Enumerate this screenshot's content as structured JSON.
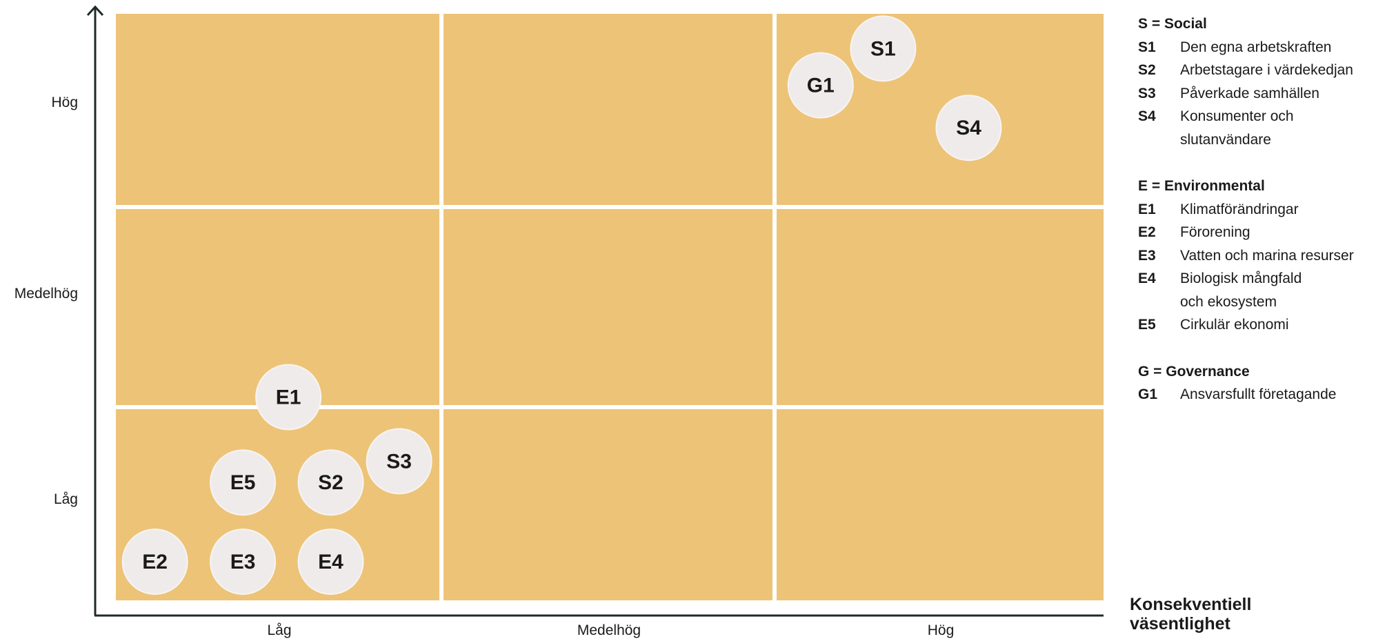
{
  "chart_data": {
    "type": "matrix",
    "x_axis_title": "Konsekventiell väsentlighet",
    "y_axis_title": "",
    "x_categories": [
      "Låg",
      "Medelhög",
      "Hög"
    ],
    "y_categories": [
      "Låg",
      "Medelhög",
      "Hög"
    ],
    "xlim": [
      0,
      3
    ],
    "ylim": [
      0,
      3
    ],
    "points": [
      {
        "label": "S1",
        "x": 2.33,
        "y": 2.82
      },
      {
        "label": "G1",
        "x": 2.14,
        "y": 2.63
      },
      {
        "label": "S4",
        "x": 2.59,
        "y": 2.41
      },
      {
        "label": "E1",
        "x": 0.53,
        "y": 1.05
      },
      {
        "label": "S3",
        "x": 0.87,
        "y": 0.72
      },
      {
        "label": "E5",
        "x": 0.39,
        "y": 0.61
      },
      {
        "label": "S2",
        "x": 0.66,
        "y": 0.61
      },
      {
        "label": "E2",
        "x": 0.12,
        "y": 0.2
      },
      {
        "label": "E3",
        "x": 0.39,
        "y": 0.2
      },
      {
        "label": "E4",
        "x": 0.66,
        "y": 0.2
      }
    ],
    "colors": {
      "cell": "#edc377",
      "grid": "#ffffff",
      "bubble": "#efebea",
      "bubble_border": "#f7f4f2",
      "axis": "#1f2a2a",
      "label": "#1a1a1a"
    }
  },
  "legend": [
    {
      "title": "S = Social",
      "items": [
        {
          "code": "S1",
          "lines": [
            "Den egna arbetskraften"
          ]
        },
        {
          "code": "S2",
          "lines": [
            "Arbetstagare i värdekedjan"
          ]
        },
        {
          "code": "S3",
          "lines": [
            "Påverkade samhällen"
          ]
        },
        {
          "code": "S4",
          "lines": [
            "Konsumenter och",
            "slutanvändare"
          ]
        }
      ]
    },
    {
      "title": "E = Environmental",
      "items": [
        {
          "code": "E1",
          "lines": [
            "Klimatförändringar"
          ]
        },
        {
          "code": "E2",
          "lines": [
            "Förorening"
          ]
        },
        {
          "code": "E3",
          "lines": [
            "Vatten och marina resurser"
          ]
        },
        {
          "code": "E4",
          "lines": [
            "Biologisk mångfald",
            "och ekosystem"
          ]
        },
        {
          "code": "E5",
          "lines": [
            "Cirkulär ekonomi"
          ]
        }
      ]
    },
    {
      "title": "G = Governance",
      "items": [
        {
          "code": "G1",
          "lines": [
            "Ansvarsfullt företagande"
          ]
        }
      ]
    }
  ]
}
